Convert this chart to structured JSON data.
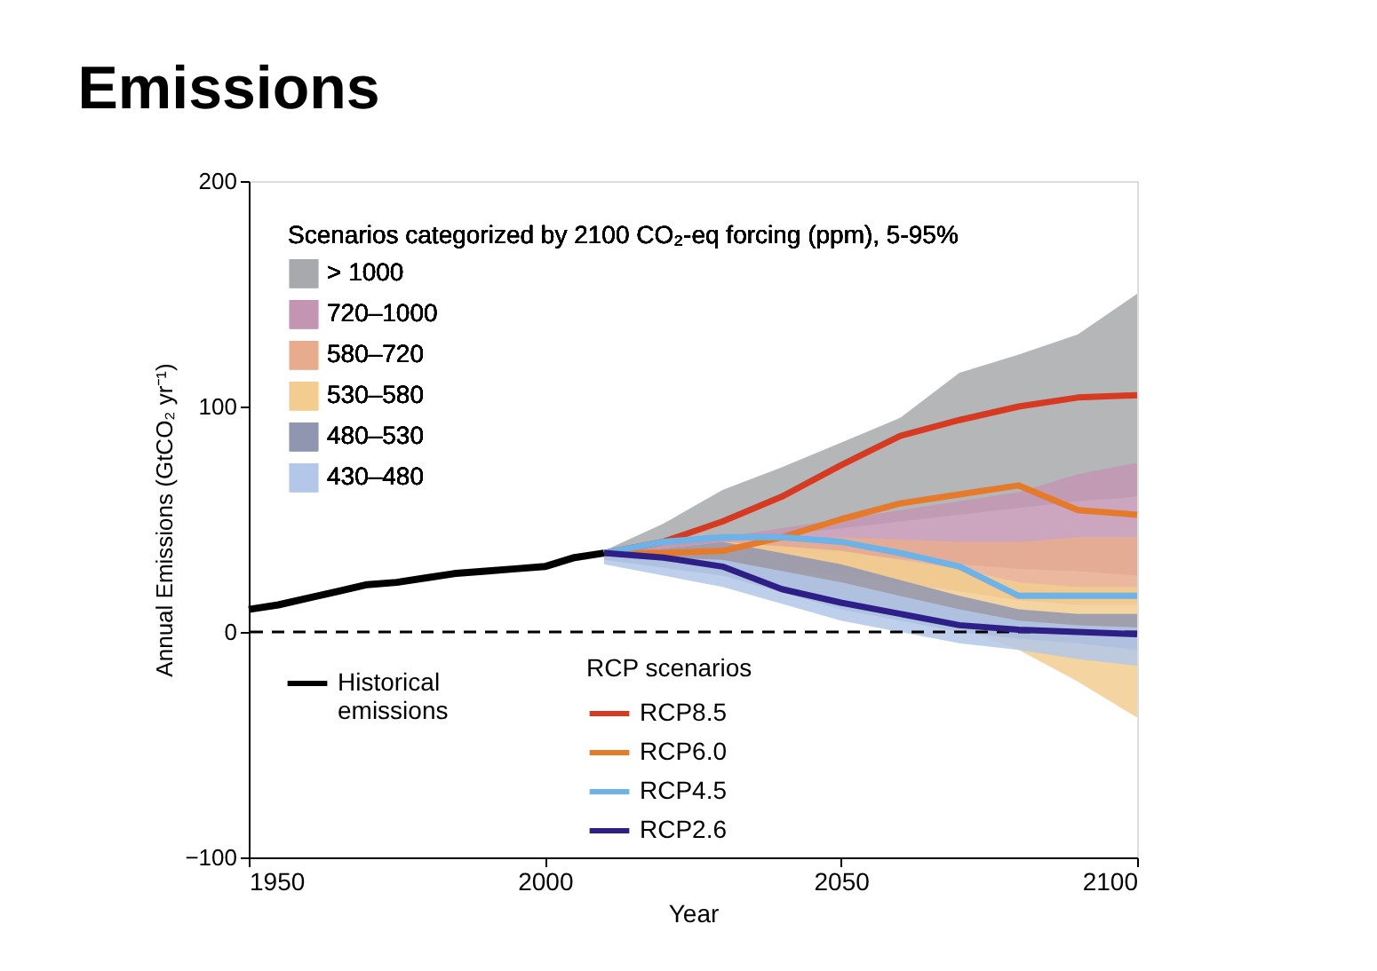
{
  "chart_data": {
    "type": "line",
    "title": "Emissions",
    "xlabel": "Year",
    "ylabel": "Annual Emissions (GtCO₂ yr⁻¹)",
    "legend_title": [
      "Scenarios categorized by 2100 CO₂-eq forcing (ppm), 5-95%",
      "RCP scenarios"
    ],
    "xlim": [
      1950,
      2100
    ],
    "ylim": [
      -100,
      200
    ],
    "xticks": [
      1950,
      2000,
      2050,
      2100
    ],
    "yticks": [
      -100,
      0,
      100,
      200
    ],
    "grid": false,
    "legend": "left",
    "marker": "none",
    "line_style": "solid",
    "ref_lines": [
      {
        "axis": "y",
        "value": 0,
        "label": null,
        "color": "#000000",
        "line_style": "dashed"
      }
    ],
    "series": [
      {
        "name": "> 1000",
        "type": "area",
        "color": "#a7a9ac",
        "x": [
          2010,
          2020,
          2030,
          2040,
          2050,
          2060,
          2070,
          2080,
          2090,
          2100
        ],
        "values": [
          null,
          null,
          null,
          null,
          null,
          null,
          null,
          null,
          null,
          null
        ],
        "lower": [
          33,
          37,
          40,
          43,
          46,
          49,
          52,
          55,
          58,
          60
        ],
        "upper": [
          36,
          48,
          63,
          73,
          84,
          95,
          115,
          123,
          132,
          150
        ]
      },
      {
        "name": "720–1000",
        "type": "area",
        "color": "#c395b3",
        "x": [
          2010,
          2030,
          2050,
          2070,
          2080,
          2090,
          2100
        ],
        "values": [
          null,
          null,
          null,
          null,
          null,
          null,
          null
        ],
        "lower": [
          33,
          35,
          35,
          30,
          28,
          27,
          25
        ],
        "upper": [
          35,
          42,
          50,
          58,
          62,
          70,
          75
        ]
      },
      {
        "name": "580–720",
        "type": "area",
        "color": "#e8ab8e",
        "x": [
          2010,
          2030,
          2050,
          2070,
          2080,
          2090,
          2100
        ],
        "values": [
          null,
          null,
          null,
          null,
          null,
          null,
          null
        ],
        "lower": [
          32,
          30,
          25,
          18,
          14,
          12,
          12
        ],
        "upper": [
          34,
          40,
          42,
          40,
          40,
          42,
          42
        ]
      },
      {
        "name": "530–580",
        "type": "area",
        "color": "#f2cd8f",
        "x": [
          2010,
          2030,
          2050,
          2070,
          2080,
          2090,
          2100
        ],
        "values": [
          null,
          null,
          null,
          null,
          null,
          null,
          null
        ],
        "lower": [
          32,
          28,
          15,
          2,
          -8,
          -22,
          -38
        ],
        "upper": [
          34,
          40,
          36,
          28,
          22,
          20,
          20
        ]
      },
      {
        "name": "480–530",
        "type": "area",
        "color": "#9095b0",
        "x": [
          2010,
          2030,
          2050,
          2070,
          2080,
          2090,
          2100
        ],
        "values": [
          null,
          null,
          null,
          null,
          null,
          null,
          null
        ],
        "lower": [
          32,
          25,
          10,
          0,
          -3,
          -5,
          -8
        ],
        "upper": [
          34,
          40,
          30,
          16,
          10,
          8,
          8
        ]
      },
      {
        "name": "430–480",
        "type": "area",
        "color": "#b3c7e8",
        "x": [
          2010,
          2030,
          2050,
          2070,
          2080,
          2090,
          2100
        ],
        "values": [
          null,
          null,
          null,
          null,
          null,
          null,
          null
        ],
        "lower": [
          30,
          20,
          5,
          -5,
          -8,
          -12,
          -15
        ],
        "upper": [
          34,
          32,
          22,
          10,
          5,
          3,
          2
        ]
      },
      {
        "name": "Historical emissions",
        "color": "#000000",
        "x": [
          1950,
          1955,
          1960,
          1965,
          1970,
          1975,
          1980,
          1985,
          1990,
          1995,
          2000,
          2005,
          2010
        ],
        "values": [
          10,
          12,
          15,
          18,
          21,
          22,
          24,
          26,
          27,
          28,
          29,
          33,
          35
        ]
      },
      {
        "name": "RCP8.5",
        "color": "#d63a20",
        "x": [
          2010,
          2020,
          2030,
          2040,
          2050,
          2060,
          2070,
          2080,
          2090,
          2100
        ],
        "values": [
          35,
          40,
          49,
          60,
          74,
          87,
          94,
          100,
          104,
          105
        ]
      },
      {
        "name": "RCP6.0",
        "color": "#e57a2a",
        "x": [
          2010,
          2020,
          2030,
          2040,
          2050,
          2060,
          2070,
          2080,
          2090,
          2100
        ],
        "values": [
          35,
          35,
          36,
          42,
          50,
          57,
          61,
          65,
          54,
          52
        ]
      },
      {
        "name": "RCP4.5",
        "color": "#6db3e8",
        "x": [
          2010,
          2020,
          2030,
          2040,
          2050,
          2060,
          2070,
          2080,
          2090,
          2100
        ],
        "values": [
          35,
          40,
          42,
          42,
          40,
          35,
          29,
          16,
          16,
          16
        ]
      },
      {
        "name": "RCP2.6",
        "color": "#2e1f86",
        "x": [
          2010,
          2020,
          2030,
          2040,
          2050,
          2060,
          2070,
          2080,
          2090,
          2100
        ],
        "values": [
          35,
          33,
          29,
          19,
          13,
          8,
          3,
          1,
          0,
          -1
        ]
      }
    ]
  }
}
